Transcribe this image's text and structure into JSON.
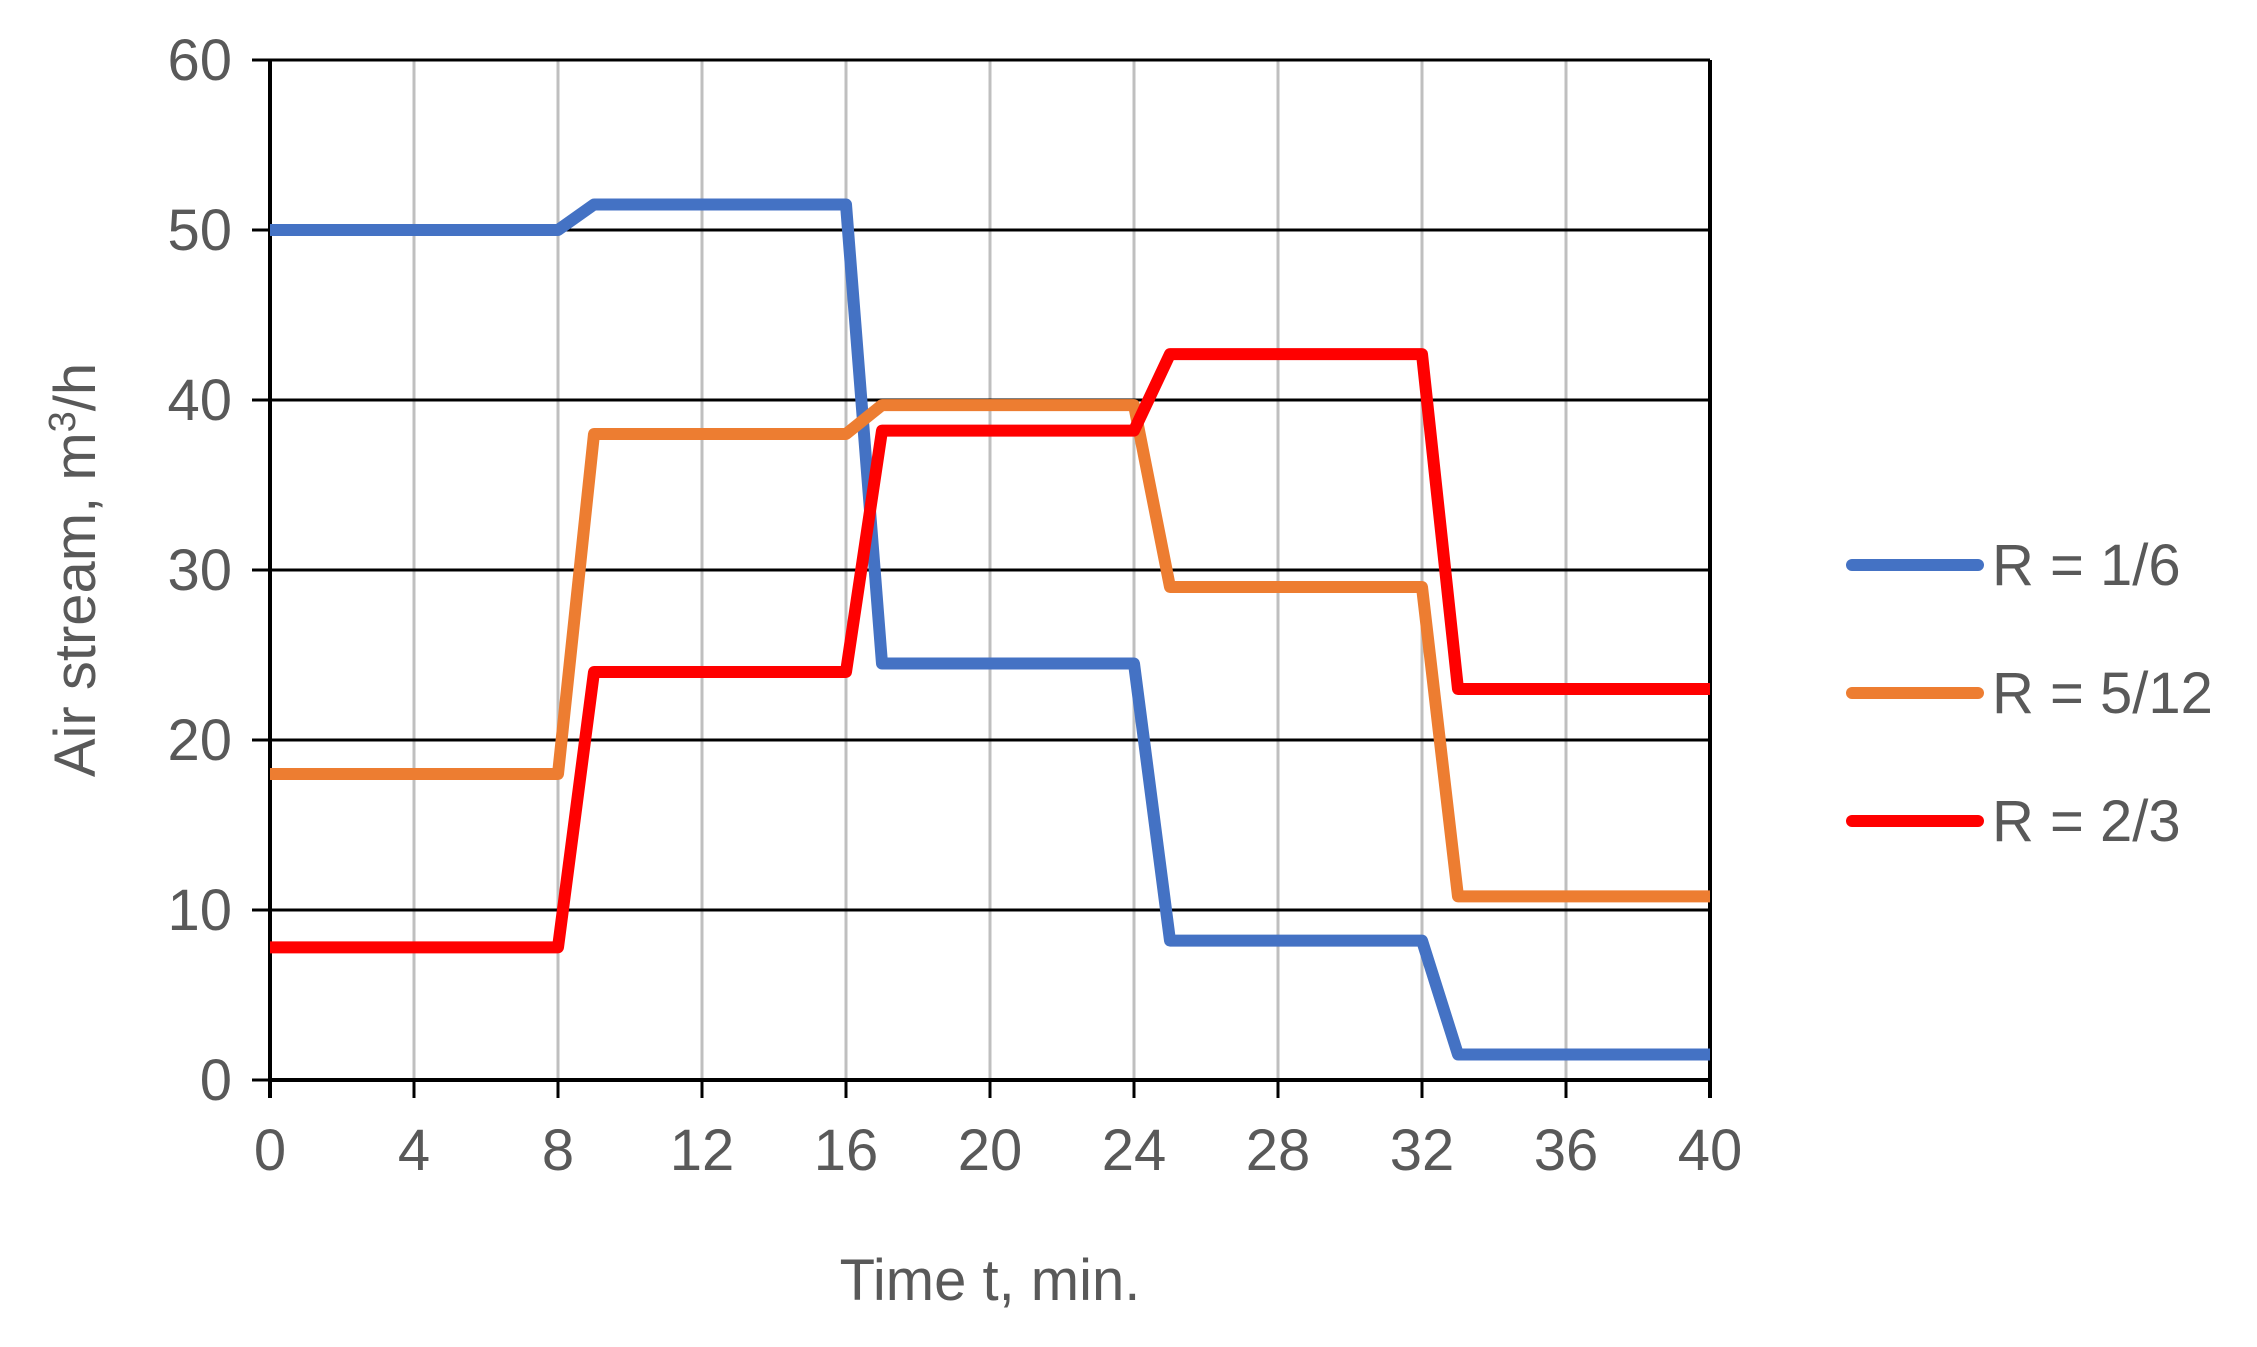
{
  "chart_data": {
    "type": "line",
    "xlabel": "Time t, min.",
    "ylabel_main": "Air stream, m",
    "ylabel_sup": "3",
    "ylabel_tail": "/h",
    "xlim": [
      0,
      40
    ],
    "ylim": [
      0,
      60
    ],
    "xticks": [
      0,
      4,
      8,
      12,
      16,
      20,
      24,
      28,
      32,
      36,
      40
    ],
    "yticks": [
      0,
      10,
      20,
      30,
      40,
      50,
      60
    ],
    "grid": true,
    "legend_position": "right",
    "series": [
      {
        "name": "R = 1/6",
        "color": "#4472C4",
        "x": [
          0,
          8,
          9,
          16,
          17,
          24,
          25,
          32,
          33,
          40
        ],
        "y": [
          50,
          50,
          51.5,
          51.5,
          24.5,
          24.5,
          8.2,
          8.2,
          1.5,
          1.5
        ]
      },
      {
        "name": "R = 5/12",
        "color": "#ED7D31",
        "x": [
          0,
          8,
          9,
          16,
          17,
          24,
          25,
          32,
          33,
          40
        ],
        "y": [
          18,
          18,
          38,
          38,
          39.7,
          39.7,
          29,
          29,
          10.8,
          10.8
        ]
      },
      {
        "name": "R = 2/3",
        "color": "#FF0000",
        "x": [
          0,
          8,
          9,
          16,
          17,
          24,
          25,
          32,
          33,
          40
        ],
        "y": [
          7.8,
          7.8,
          24,
          24,
          38.2,
          38.2,
          42.7,
          42.7,
          23,
          23
        ]
      }
    ]
  }
}
